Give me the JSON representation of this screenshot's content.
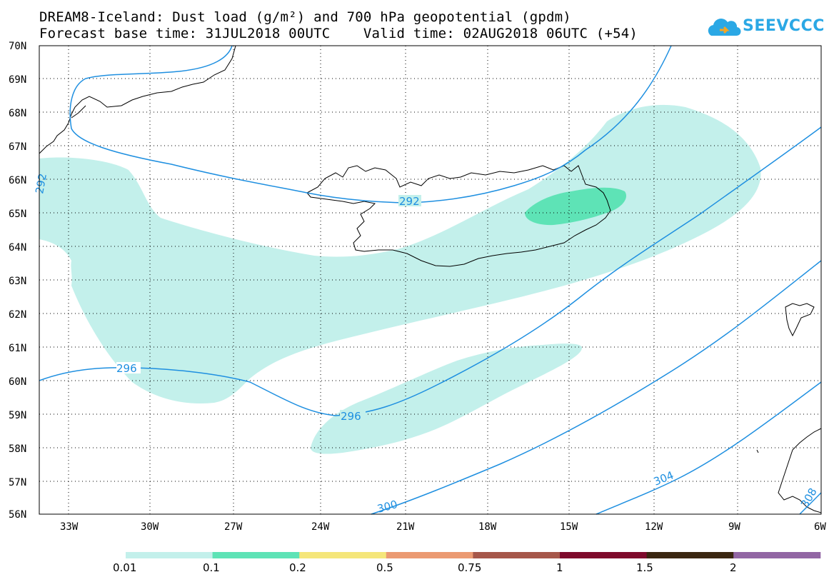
{
  "header": {
    "title_line1": "DREAM8-Iceland: Dust load (g/m²) and 700 hPa geopotential (gpdm)",
    "title_line2": "Forecast base time: 31JUL2018 00UTC    Valid time: 02AUG2018 06UTC (+54)"
  },
  "logo": {
    "text": "SEEVCCC",
    "icon": "cloud-icon",
    "color": "#2ba8e5"
  },
  "map": {
    "projection": "lat-lon",
    "lon_range": [
      -34.5,
      -6
    ],
    "lat_range": [
      56,
      70
    ],
    "lat_labels": [
      "70N",
      "69N",
      "68N",
      "67N",
      "66N",
      "65N",
      "64N",
      "63N",
      "62N",
      "61N",
      "60N",
      "59N",
      "58N",
      "57N",
      "56N"
    ],
    "lon_labels": [
      "33W",
      "30W",
      "27W",
      "24W",
      "21W",
      "18W",
      "15W",
      "12W",
      "9W",
      "6W"
    ],
    "gridlines": "dotted",
    "contour_color": "#1e8fe0",
    "contour_labels": [
      {
        "text": "292",
        "lon": -34.3,
        "lat": 65.6
      },
      {
        "text": "292",
        "lon": -20.6,
        "lat": 65.3
      },
      {
        "text": "296",
        "lon": -30.9,
        "lat": 60.4
      },
      {
        "text": "296",
        "lon": -22.6,
        "lat": 58.9
      },
      {
        "text": "300",
        "lon": -21.1,
        "lat": 56.2
      },
      {
        "text": "304",
        "lon": -11.7,
        "lat": 57.0
      },
      {
        "text": "308",
        "lon": -6.4,
        "lat": 56.6
      }
    ]
  },
  "colorbar": {
    "colors": [
      "#c3f0eb",
      "#5ee3b6",
      "#f5e67a",
      "#eb9a72",
      "#a6574a",
      "#7e0a2c",
      "#3a2611",
      "#9266a4"
    ],
    "labels": [
      "0.01",
      "0.1",
      "0.2",
      "0.5",
      "0.75",
      "1",
      "1.5",
      "2"
    ]
  }
}
